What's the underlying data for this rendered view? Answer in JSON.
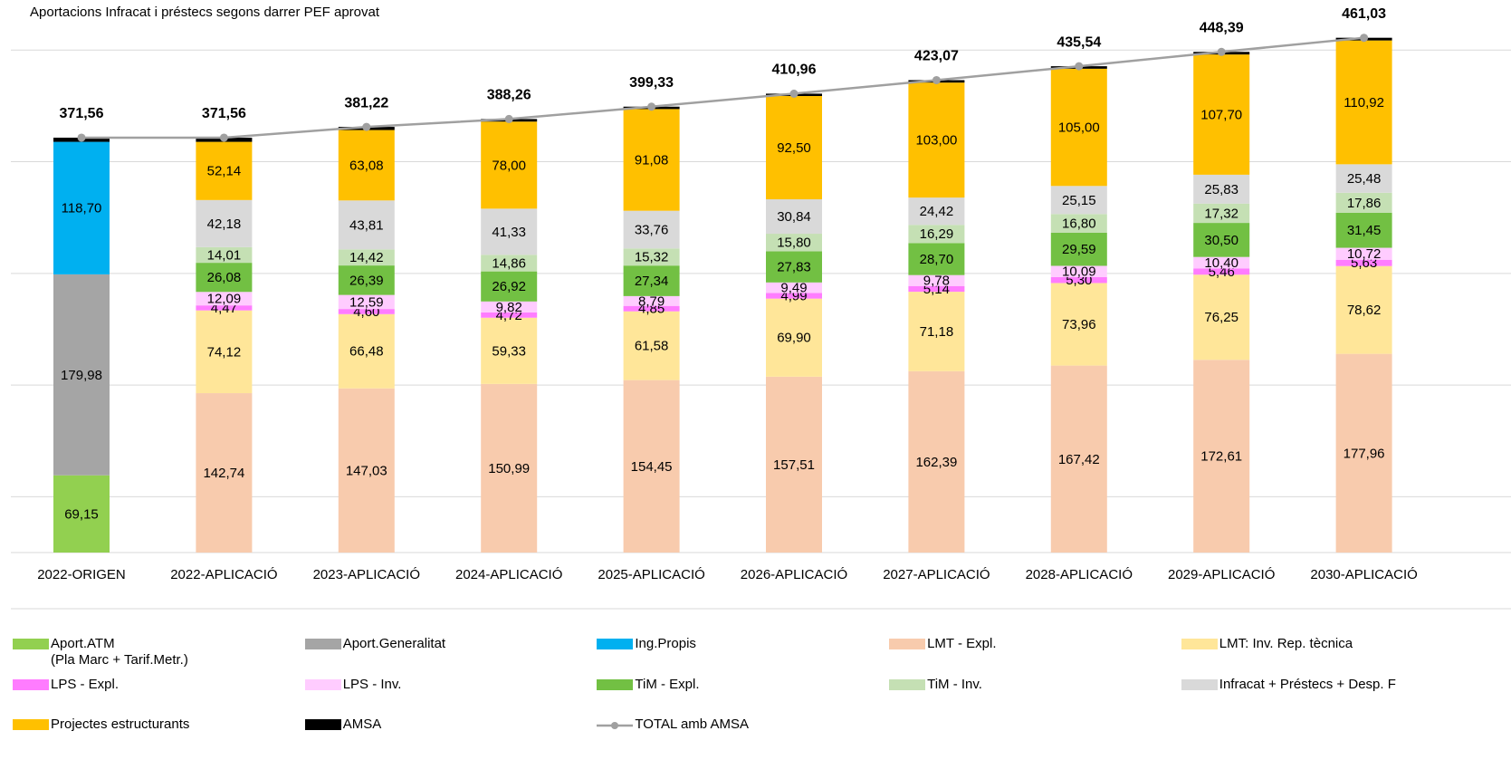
{
  "chart_data": {
    "type": "bar",
    "stacked": true,
    "title": "Aportacions Infracat i préstecs segons darrer PEF aprovat",
    "categories": [
      "2022-ORIGEN",
      "2022-APLICACIÓ",
      "2023-APLICACIÓ",
      "2024-APLICACIÓ",
      "2025-APLICACIÓ",
      "2026-APLICACIÓ",
      "2027-APLICACIÓ",
      "2028-APLICACIÓ",
      "2029-APLICACIÓ",
      "2030-APLICACIÓ"
    ],
    "ylim": [
      0,
      470
    ],
    "gridlines": [
      50,
      150,
      250,
      350,
      450
    ],
    "grid": true,
    "series": [
      {
        "name": "Aport.ATM\n(Pla Marc + Tarif.Metr.)",
        "color": "#92d050",
        "values": [
          69.15,
          null,
          null,
          null,
          null,
          null,
          null,
          null,
          null,
          null
        ],
        "value_labels": [
          "69,15",
          null,
          null,
          null,
          null,
          null,
          null,
          null,
          null,
          null
        ]
      },
      {
        "name": "Aport.Generalitat",
        "color": "#a5a5a5",
        "label_color": "#ffffff",
        "values": [
          179.98,
          null,
          null,
          null,
          null,
          null,
          null,
          null,
          null,
          null
        ],
        "value_labels": [
          "179,98",
          null,
          null,
          null,
          null,
          null,
          null,
          null,
          null,
          null
        ]
      },
      {
        "name": "Ing.Propis",
        "color": "#00b0f0",
        "label_color": "#ffffff",
        "values": [
          118.7,
          null,
          null,
          null,
          null,
          null,
          null,
          null,
          null,
          null
        ],
        "value_labels": [
          "118,70",
          null,
          null,
          null,
          null,
          null,
          null,
          null,
          null,
          null
        ]
      },
      {
        "name": "LMT - Expl.",
        "color": "#f8cbad",
        "values": [
          null,
          142.74,
          147.03,
          150.99,
          154.45,
          157.51,
          162.39,
          167.42,
          172.61,
          177.96
        ],
        "value_labels": [
          null,
          "142,74",
          "147,03",
          "150,99",
          "154,45",
          "157,51",
          "162,39",
          "167,42",
          "172,61",
          "177,96"
        ]
      },
      {
        "name": "LMT: Inv. Rep. tècnica",
        "color": "#ffe699",
        "values": [
          null,
          74.12,
          66.48,
          59.33,
          61.58,
          69.9,
          71.18,
          73.96,
          76.25,
          78.62
        ],
        "value_labels": [
          null,
          "74,12",
          "66,48",
          "59,33",
          "61,58",
          "69,90",
          "71,18",
          "73,96",
          "76,25",
          "78,62"
        ]
      },
      {
        "name": "LPS - Expl.",
        "color": "#ff7cff",
        "values": [
          null,
          4.47,
          4.6,
          4.72,
          4.85,
          4.99,
          5.14,
          5.3,
          5.46,
          5.63
        ],
        "value_labels": [
          null,
          "4,47",
          "4,60",
          "4,72",
          "4,85",
          "4,99",
          "5,14",
          "5,30",
          "5,46",
          "5,63"
        ]
      },
      {
        "name": "LPS - Inv.",
        "color": "#ffccff",
        "values": [
          null,
          12.09,
          12.59,
          9.82,
          8.79,
          9.49,
          9.78,
          10.09,
          10.4,
          10.72
        ],
        "value_labels": [
          null,
          "12,09",
          "12,59",
          "9,82",
          "8,79",
          "9,49",
          "9,78",
          "10,09",
          "10,40",
          "10,72"
        ]
      },
      {
        "name": "TiM - Expl.",
        "color": "#72c043",
        "values": [
          null,
          26.08,
          26.39,
          26.92,
          27.34,
          27.83,
          28.7,
          29.59,
          30.5,
          31.45
        ],
        "value_labels": [
          null,
          "26,08",
          "26,39",
          "26,92",
          "27,34",
          "27,83",
          "28,70",
          "29,59",
          "30,50",
          "31,45"
        ]
      },
      {
        "name": "TiM - Inv.",
        "color": "#c5e0b4",
        "values": [
          null,
          14.01,
          14.42,
          14.86,
          15.32,
          15.8,
          16.29,
          16.8,
          17.32,
          17.86
        ],
        "value_labels": [
          null,
          "14,01",
          "14,42",
          "14,86",
          "15,32",
          "15,80",
          "16,29",
          "16,80",
          "17,32",
          "17,86"
        ]
      },
      {
        "name": "Infracat + Préstecs + Desp. F",
        "color": "#d9d9d9",
        "values": [
          null,
          42.18,
          43.81,
          41.33,
          33.76,
          30.84,
          24.42,
          25.15,
          25.83,
          25.48
        ],
        "value_labels": [
          null,
          "42,18",
          "43,81",
          "41,33",
          "33,76",
          "30,84",
          "24,42",
          "25,15",
          "25,83",
          "25,48"
        ]
      },
      {
        "name": "Projectes estructurants",
        "color": "#ffc000",
        "values": [
          null,
          52.14,
          63.08,
          78.0,
          91.08,
          92.5,
          103.0,
          105.0,
          107.7,
          110.92
        ],
        "value_labels": [
          null,
          "52,14",
          "63,08",
          "78,00",
          "91,08",
          "92,50",
          "103,00",
          "105,00",
          "107,70",
          "110,92"
        ]
      },
      {
        "name": "AMSA",
        "color": "#000000",
        "values": [
          3.73,
          3.73,
          2.82,
          2.29,
          2.16,
          2.1,
          2.17,
          2.23,
          2.32,
          2.39
        ]
      },
      {
        "name": "TOTAL amb AMSA",
        "type": "line",
        "color": "#a0a0a0",
        "values": [
          371.56,
          371.56,
          381.22,
          388.26,
          399.33,
          410.96,
          423.07,
          435.54,
          448.39,
          461.03
        ],
        "value_labels": [
          "371,56",
          "371,56",
          "381,22",
          "388,26",
          "399,33",
          "410,96",
          "423,07",
          "435,54",
          "448,39",
          "461,03"
        ]
      }
    ]
  }
}
